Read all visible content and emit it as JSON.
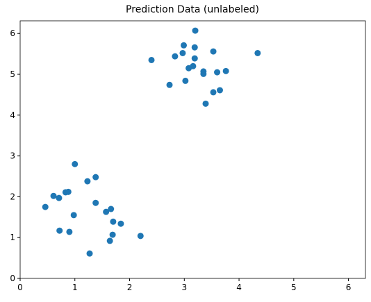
{
  "chart_data": {
    "type": "scatter",
    "title": "Prediction Data (unlabeled)",
    "color": "#1f77b4",
    "x": [
      3.2,
      2.99,
      3.19,
      2.97,
      2.83,
      3.53,
      4.34,
      2.4,
      3.19,
      3.16,
      3.08,
      3.35,
      3.35,
      3.6,
      3.76,
      3.02,
      2.73,
      3.65,
      3.53,
      3.39,
      1.0,
      1.38,
      1.23,
      0.61,
      0.71,
      0.83,
      0.88,
      0.46,
      1.38,
      1.66,
      1.57,
      0.98,
      1.7,
      1.84,
      0.72,
      0.9,
      1.69,
      2.2,
      1.64,
      1.27
    ],
    "values": [
      6.07,
      5.71,
      5.66,
      5.52,
      5.44,
      5.56,
      5.52,
      5.35,
      5.39,
      5.2,
      5.15,
      5.07,
      5.01,
      5.05,
      5.08,
      4.84,
      4.74,
      4.61,
      4.56,
      4.28,
      2.8,
      2.48,
      2.38,
      2.02,
      1.97,
      2.11,
      2.12,
      1.75,
      1.85,
      1.7,
      1.63,
      1.55,
      1.39,
      1.34,
      1.17,
      1.14,
      1.07,
      1.04,
      0.92,
      0.61
    ],
    "xlim": [
      0,
      6.31
    ],
    "ylim": [
      0,
      6.31
    ],
    "xticks": [
      0,
      1,
      2,
      3,
      4,
      5,
      6
    ],
    "yticks": [
      0,
      1,
      2,
      3,
      4,
      5,
      6
    ],
    "grid": false
  }
}
